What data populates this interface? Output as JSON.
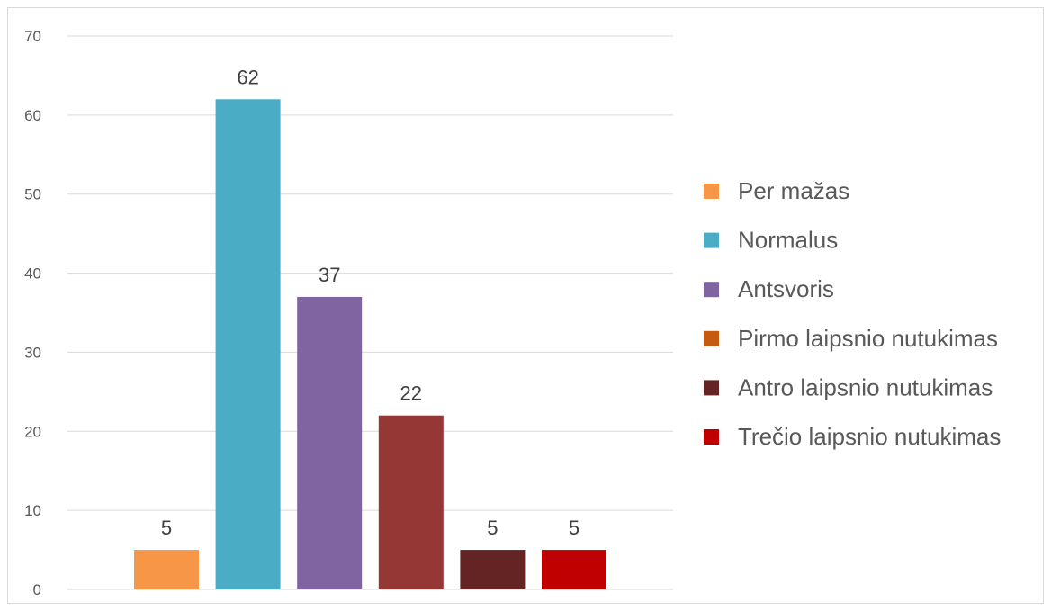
{
  "chart_data": {
    "type": "bar",
    "categories": [
      "Per mažas",
      "Normalus",
      "Antsvoris",
      "Pirmo laipsnio nutukimas",
      "Antro laipsnio nutukimas",
      "Trečio laipsnio nutukimas"
    ],
    "values": [
      5,
      62,
      37,
      22,
      5,
      5
    ],
    "colors": [
      "#f79646",
      "#4bacc6",
      "#8064a2",
      "#953735",
      "#632423",
      "#c00000"
    ],
    "legend": [
      {
        "label": "Per mažas",
        "color": "#f79646"
      },
      {
        "label": "Normalus",
        "color": "#4bacc6"
      },
      {
        "label": "Antsvoris",
        "color": "#8064a2"
      },
      {
        "label": "Pirmo laipsnio nutukimas",
        "color": "#c55a11"
      },
      {
        "label": "Antro laipsnio nutukimas",
        "color": "#632423"
      },
      {
        "label": "Trečio laipsnio nutukimas",
        "color": "#c00000"
      }
    ],
    "data_labels": [
      "5",
      "62",
      "37",
      "22",
      "5",
      "5"
    ],
    "yticks": [
      0,
      10,
      20,
      30,
      40,
      50,
      60,
      70
    ],
    "ylim": [
      0,
      70
    ],
    "grid": true,
    "legend_position": "right",
    "title": "",
    "xlabel": "",
    "ylabel": ""
  }
}
